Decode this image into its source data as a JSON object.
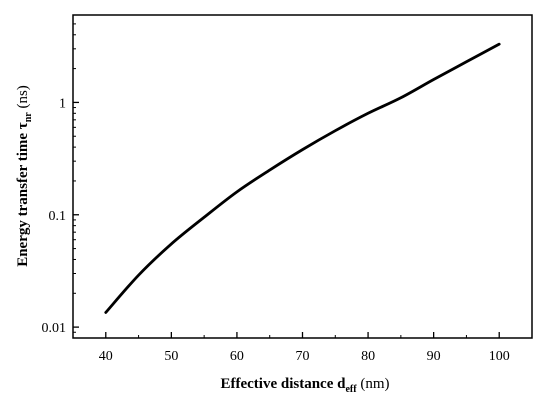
{
  "chart_data": {
    "type": "line",
    "title": "",
    "xlabel": {
      "main": "Effective distance d",
      "sub": "eff",
      "unit": " (nm)"
    },
    "ylabel": {
      "main": "Energy transfer time τ",
      "sub": "nr",
      "unit": " (ns)"
    },
    "xlim": [
      35,
      105
    ],
    "ylim": [
      0.008,
      6
    ],
    "yscale": "log",
    "grid": false,
    "xticks": [
      40,
      50,
      60,
      70,
      80,
      90,
      100
    ],
    "yticks": [
      0.01,
      0.1,
      1
    ],
    "ytick_labels": [
      "0.01",
      "0.1",
      "1"
    ],
    "series": [
      {
        "color": "#000000",
        "x": [
          40,
          45,
          50,
          55,
          60,
          65,
          70,
          75,
          80,
          85,
          90,
          95,
          100
        ],
        "y": [
          0.0135,
          0.029,
          0.055,
          0.095,
          0.16,
          0.25,
          0.38,
          0.56,
          0.8,
          1.1,
          1.6,
          2.3,
          3.3
        ]
      }
    ]
  }
}
